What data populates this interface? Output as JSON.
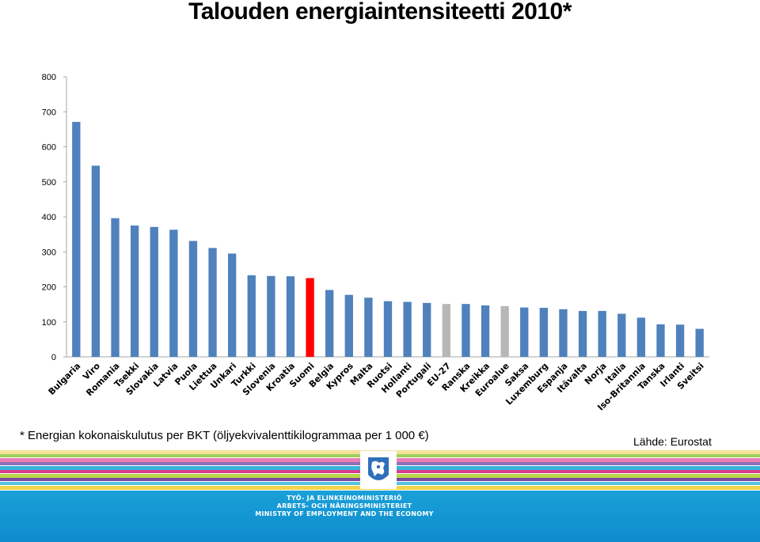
{
  "title": "Talouden energiaintensiteetti 2010*",
  "footnote": "* Energian kokonaiskulutus per BKT (öljyekvivalenttikilogrammaa per 1 000 €)",
  "source": "Lähde: Eurostat",
  "ministry": {
    "line1": "TYÖ- JA ELINKEINOMINISTERIÖ",
    "line2": "ARBETS- OCH NÄRINGSMINISTERIET",
    "line3": "MINISTRY OF EMPLOYMENT AND THE ECONOMY"
  },
  "colors": {
    "bar_default": "#4f81bd",
    "bar_highlight": "#ff0000",
    "bar_aggregate": "#b7b7b7",
    "band": "#1aa0d8"
  },
  "chart_data": {
    "type": "bar",
    "categories": [
      "Bulgaria",
      "Viro",
      "Romania",
      "Tsekki",
      "Slovakia",
      "Latvia",
      "Puola",
      "Liettua",
      "Unkari",
      "Turkki",
      "Slovenia",
      "Kroatia",
      "Suomi",
      "Belgia",
      "Kypros",
      "Malta",
      "Ruotsi",
      "Hollanti",
      "Portugali",
      "EU-27",
      "Ranska",
      "Kreikka",
      "Euroalue",
      "Saksa",
      "Luxemburg",
      "Espanja",
      "Itävalta",
      "Norja",
      "Italia",
      "Iso-Britannia",
      "Tanska",
      "Irlanti",
      "Sveitsi"
    ],
    "values": [
      671,
      546,
      396,
      375,
      371,
      363,
      331,
      311,
      295,
      233,
      231,
      230,
      225,
      191,
      177,
      169,
      159,
      157,
      154,
      151,
      151,
      147,
      145,
      141,
      140,
      136,
      131,
      131,
      123,
      112,
      93,
      92,
      80
    ],
    "bar_colors": [
      "default",
      "default",
      "default",
      "default",
      "default",
      "default",
      "default",
      "default",
      "default",
      "default",
      "default",
      "default",
      "highlight",
      "default",
      "default",
      "default",
      "default",
      "default",
      "default",
      "aggregate",
      "default",
      "default",
      "aggregate",
      "default",
      "default",
      "default",
      "default",
      "default",
      "default",
      "default",
      "default",
      "default",
      "default"
    ],
    "ylim": [
      0,
      800
    ],
    "yticks": [
      0,
      100,
      200,
      300,
      400,
      500,
      600,
      700,
      800
    ],
    "grid": false
  }
}
